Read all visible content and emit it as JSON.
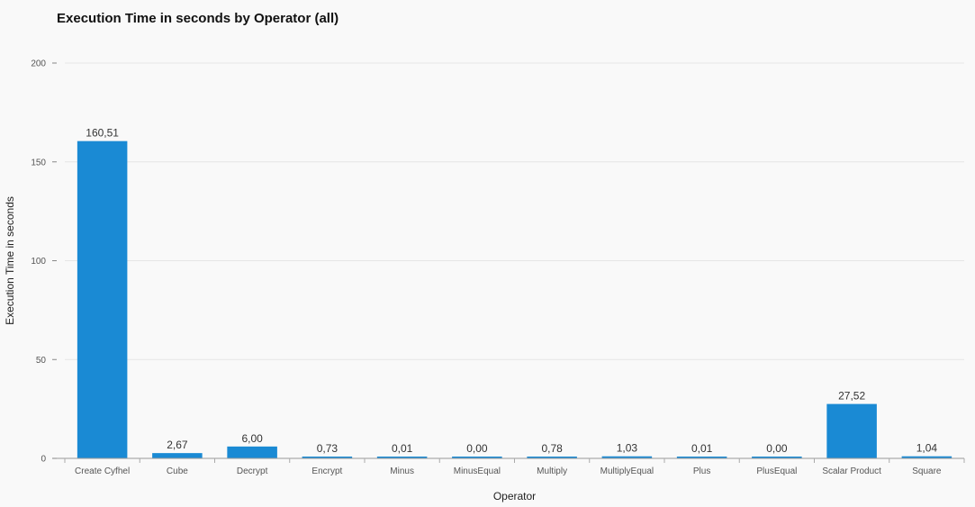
{
  "chart_data": {
    "type": "bar",
    "title": "Execution Time in seconds by Operator (all)",
    "xlabel": "Operator",
    "ylabel": "Execution Time in seconds",
    "ylim": [
      0,
      200
    ],
    "yticks": [
      0,
      50,
      100,
      150,
      200
    ],
    "categories": [
      "Create Cyfhel",
      "Cube",
      "Decrypt",
      "Encrypt",
      "Minus",
      "MinusEqual",
      "Multiply",
      "MultiplyEqual",
      "Plus",
      "PlusEqual",
      "Scalar Product",
      "Square"
    ],
    "values": [
      160.51,
      2.67,
      6.0,
      0.73,
      0.01,
      0.0,
      0.78,
      1.03,
      0.01,
      0.0,
      27.52,
      1.04
    ],
    "value_labels": [
      "160,51",
      "2,67",
      "6,00",
      "0,73",
      "0,01",
      "0,00",
      "0,78",
      "1,03",
      "0,01",
      "0,00",
      "27,52",
      "1,04"
    ],
    "bar_color": "#1a8ad4",
    "grid": true,
    "legend": "none"
  }
}
